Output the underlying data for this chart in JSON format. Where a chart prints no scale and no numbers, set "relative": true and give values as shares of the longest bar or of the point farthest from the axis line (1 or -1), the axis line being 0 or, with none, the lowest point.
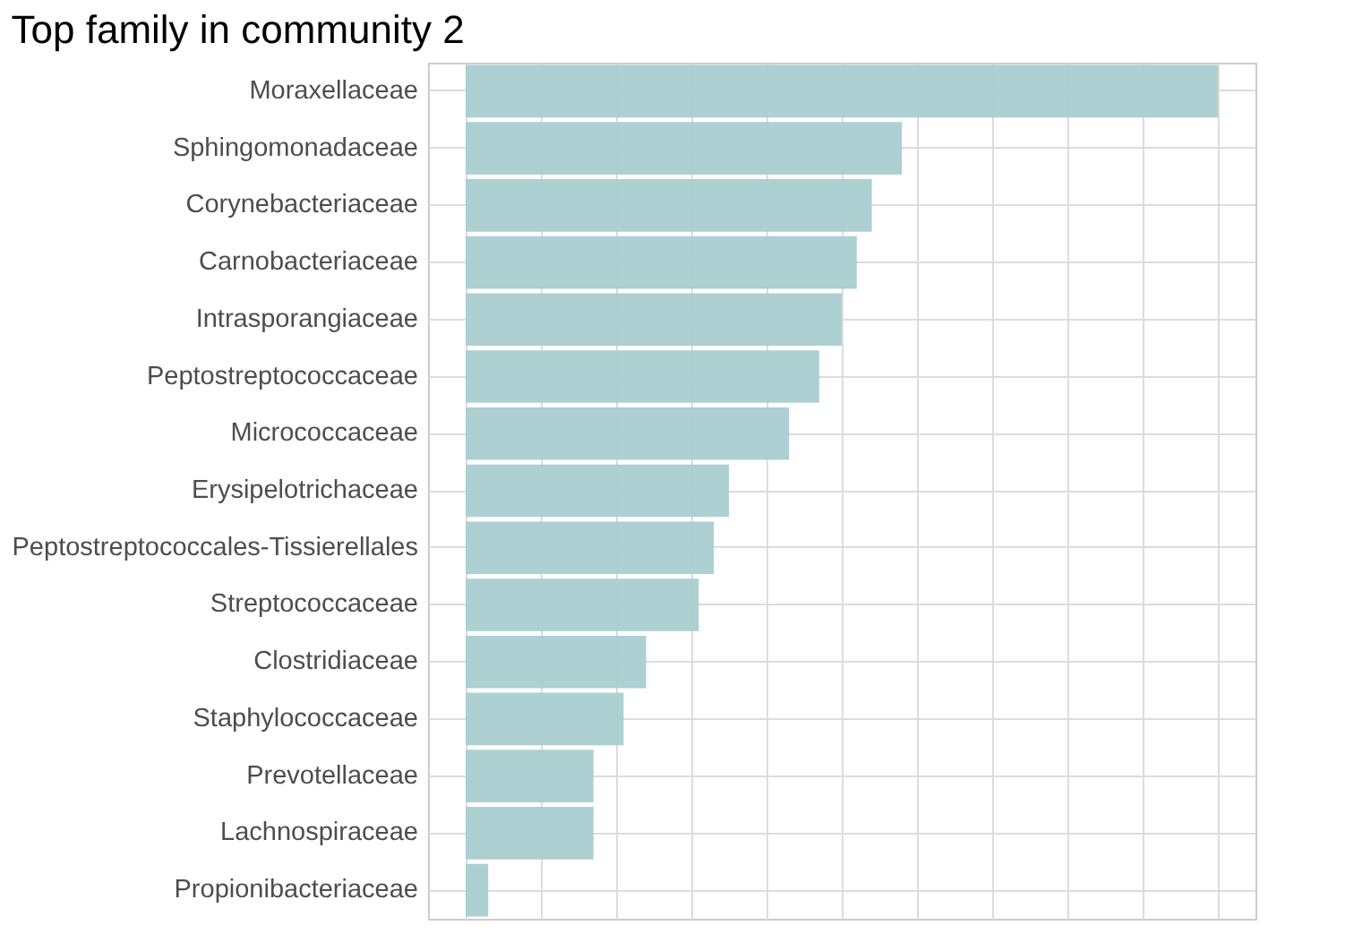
{
  "chart_data": {
    "type": "bar",
    "title": "Top family in community 2",
    "orientation": "horizontal",
    "relative": true,
    "grid": true,
    "categories": [
      "Moraxellaceae",
      "Sphingomonadaceae",
      "Corynebacteriaceae",
      "Carnobacteriaceae",
      "Intrasporangiaceae",
      "Peptostreptococcaceae",
      "Micrococcaceae",
      "Erysipelotrichaceae",
      "Peptostreptococcales-Tissierellales",
      "Streptococcaceae",
      "Clostridiaceae",
      "Staphylococcaceae",
      "Prevotellaceae",
      "Lachnospiraceae",
      "Propionibacteriaceae"
    ],
    "series": [
      {
        "color": "#a9cdd0",
        "values": [
          1,
          0.58,
          0.54,
          0.52,
          0.5,
          0.47,
          0.43,
          0.35,
          0.33,
          0.31,
          0.24,
          0.21,
          0.17,
          0.17,
          0.03
        ]
      }
    ]
  }
}
